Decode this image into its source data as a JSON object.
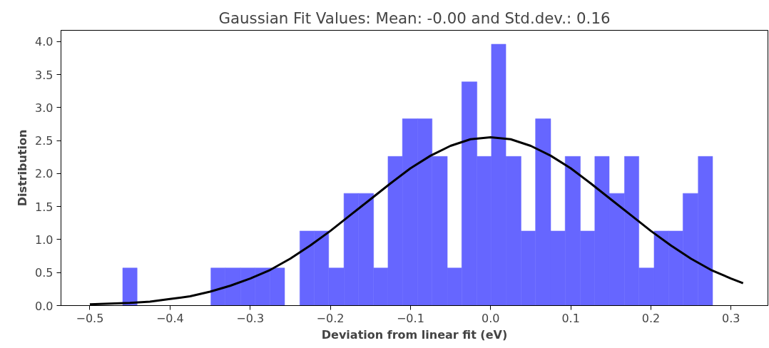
{
  "chart_data": {
    "type": "histogram",
    "title": "Gaussian Fit Values: Mean: -0.00 and Std.dev.: 0.16",
    "xlabel": "Deviation from linear fit (eV)",
    "ylabel": "Distribution",
    "series": [
      {
        "color": "#6666ff",
        "bins": [
          -0.459,
          -0.441,
          -0.423,
          -0.404,
          -0.386,
          -0.367,
          -0.349,
          -0.331,
          -0.312,
          -0.294,
          -0.275,
          -0.257,
          -0.238,
          -0.22,
          -0.202,
          -0.183,
          -0.165,
          -0.146,
          -0.128,
          -0.11,
          -0.091,
          -0.073,
          -0.054,
          -0.036,
          -0.017,
          0.001,
          0.019,
          0.038,
          0.056,
          0.075,
          0.093,
          0.112,
          0.13,
          0.148,
          0.167,
          0.185,
          0.204,
          0.222,
          0.24,
          0.259,
          0.277
        ],
        "values": [
          0.57,
          0,
          0,
          0,
          0,
          0,
          0.57,
          0.57,
          0.57,
          0.57,
          0.57,
          0,
          1.13,
          1.13,
          0.57,
          1.7,
          1.7,
          0.57,
          2.26,
          2.83,
          2.83,
          2.26,
          0.57,
          3.39,
          2.26,
          3.96,
          2.26,
          1.13,
          2.83,
          1.13,
          2.26,
          1.13,
          2.26,
          1.7,
          2.26,
          0.57,
          1.13,
          1.13,
          1.7,
          2.26
        ]
      },
      {
        "type": "line",
        "color": "#000000",
        "x": [
          -0.5,
          -0.475,
          -0.45,
          -0.425,
          -0.4,
          -0.375,
          -0.35,
          -0.325,
          -0.3,
          -0.275,
          -0.25,
          -0.225,
          -0.2,
          -0.175,
          -0.15,
          -0.125,
          -0.1,
          -0.075,
          -0.05,
          -0.025,
          0,
          0.025,
          0.05,
          0.075,
          0.1,
          0.125,
          0.15,
          0.175,
          0.2,
          0.225,
          0.25,
          0.275,
          0.3,
          0.315
        ],
        "values": [
          0.02,
          0.03,
          0.04,
          0.06,
          0.1,
          0.14,
          0.21,
          0.3,
          0.41,
          0.54,
          0.71,
          0.91,
          1.13,
          1.37,
          1.61,
          1.85,
          2.08,
          2.27,
          2.42,
          2.52,
          2.55,
          2.52,
          2.42,
          2.27,
          2.08,
          1.85,
          1.61,
          1.37,
          1.13,
          0.91,
          0.71,
          0.54,
          0.41,
          0.34
        ]
      }
    ],
    "xlim": [
      -0.536,
      0.346
    ],
    "ylim": [
      0,
      4.17
    ],
    "xticks": [
      {
        "value": -0.5,
        "label": "−0.5"
      },
      {
        "value": -0.4,
        "label": "−0.4"
      },
      {
        "value": -0.3,
        "label": "−0.3"
      },
      {
        "value": -0.2,
        "label": "−0.2"
      },
      {
        "value": -0.1,
        "label": "−0.1"
      },
      {
        "value": 0,
        "label": "0.0"
      },
      {
        "value": 0.1,
        "label": "0.1"
      },
      {
        "value": 0.2,
        "label": "0.2"
      },
      {
        "value": 0.3,
        "label": "0.3"
      }
    ],
    "yticks": [
      {
        "value": 0,
        "label": "0.0"
      },
      {
        "value": 0.5,
        "label": "0.5"
      },
      {
        "value": 1,
        "label": "1.0"
      },
      {
        "value": 1.5,
        "label": "1.5"
      },
      {
        "value": 2,
        "label": "2.0"
      },
      {
        "value": 2.5,
        "label": "2.5"
      },
      {
        "value": 3,
        "label": "3.0"
      },
      {
        "value": 3.5,
        "label": "3.5"
      },
      {
        "value": 4,
        "label": "4.0"
      }
    ],
    "grid": false
  }
}
